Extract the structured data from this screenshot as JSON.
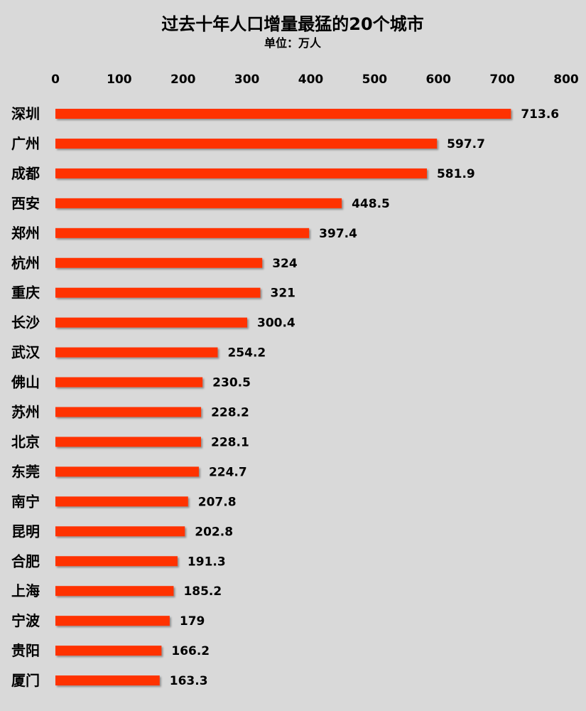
{
  "chart_data": {
    "type": "bar",
    "orientation": "horizontal",
    "title": "过去十年人口增量最猛的20个城市",
    "subtitle": "单位：万人",
    "xlim": [
      0,
      800
    ],
    "xticks": [
      0,
      100,
      200,
      300,
      400,
      500,
      600,
      700,
      800
    ],
    "categories": [
      "深圳",
      "广州",
      "成都",
      "西安",
      "郑州",
      "杭州",
      "重庆",
      "长沙",
      "武汉",
      "佛山",
      "苏州",
      "北京",
      "东莞",
      "南宁",
      "昆明",
      "合肥",
      "上海",
      "宁波",
      "贵阳",
      "厦门"
    ],
    "values": [
      713.6,
      597.7,
      581.9,
      448.5,
      397.4,
      324,
      321,
      300.4,
      254.2,
      230.5,
      228.2,
      228.1,
      224.7,
      207.8,
      202.8,
      191.3,
      185.2,
      179,
      166.2,
      163.3
    ],
    "value_labels": [
      "713.6",
      "597.7",
      "581.9",
      "448.5",
      "397.4",
      "324",
      "321",
      "300.4",
      "254.2",
      "230.5",
      "228.2",
      "228.1",
      "224.7",
      "207.8",
      "202.8",
      "191.3",
      "185.2",
      "179",
      "166.2",
      "163.3"
    ],
    "axis_position": "top",
    "grid": false,
    "legend": "none",
    "colors": {
      "bar": "#ff3300",
      "background": "#d9d9d9"
    }
  }
}
